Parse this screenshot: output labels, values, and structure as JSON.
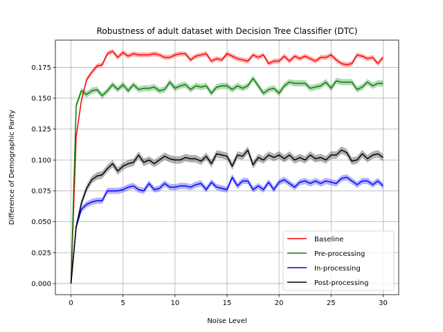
{
  "chart_data": {
    "type": "line",
    "title": "Robustness of adult dataset with Decision Tree Classifier (DTC)",
    "xlabel": "Noise Level",
    "ylabel": "Difference of Demographic Parity",
    "xlim": [
      -1.5,
      31.5
    ],
    "ylim": [
      -0.009,
      0.197
    ],
    "xticks": [
      0,
      5,
      10,
      15,
      20,
      25,
      30
    ],
    "yticks": [
      0.0,
      0.025,
      0.05,
      0.075,
      0.1,
      0.125,
      0.15,
      0.175
    ],
    "ytick_labels": [
      "0.000",
      "0.025",
      "0.050",
      "0.075",
      "0.100",
      "0.125",
      "0.150",
      "0.175"
    ],
    "grid": true,
    "legend_position": "lower-right",
    "x": [
      0,
      0.5,
      1,
      1.5,
      2,
      2.5,
      3,
      3.5,
      4,
      4.5,
      5,
      5.5,
      6,
      6.5,
      7,
      7.5,
      8,
      8.5,
      9,
      9.5,
      10,
      10.5,
      11,
      11.5,
      12,
      12.5,
      13,
      13.5,
      14,
      14.5,
      15,
      15.5,
      16,
      16.5,
      17,
      17.5,
      18,
      18.5,
      19,
      19.5,
      20,
      20.5,
      21,
      21.5,
      22,
      22.5,
      23,
      23.5,
      24,
      24.5,
      25,
      25.5,
      26,
      26.5,
      27,
      27.5,
      28,
      28.5,
      29,
      29.5,
      30
    ],
    "series": [
      {
        "name": "Baseline",
        "color": "#ff0000",
        "band": 0.002,
        "values": [
          0.0,
          0.119,
          0.148,
          0.165,
          0.171,
          0.176,
          0.177,
          0.186,
          0.188,
          0.183,
          0.187,
          0.184,
          0.186,
          0.185,
          0.185,
          0.185,
          0.186,
          0.185,
          0.183,
          0.183,
          0.185,
          0.186,
          0.186,
          0.181,
          0.184,
          0.185,
          0.186,
          0.18,
          0.182,
          0.181,
          0.186,
          0.184,
          0.182,
          0.181,
          0.18,
          0.185,
          0.183,
          0.185,
          0.178,
          0.18,
          0.18,
          0.184,
          0.18,
          0.184,
          0.182,
          0.184,
          0.182,
          0.18,
          0.183,
          0.183,
          0.185,
          0.181,
          0.178,
          0.177,
          0.178,
          0.185,
          0.184,
          0.182,
          0.183,
          0.178,
          0.183
        ]
      },
      {
        "name": "Pre-processing",
        "color": "#008000",
        "band": 0.0025,
        "values": [
          0.0,
          0.144,
          0.156,
          0.153,
          0.156,
          0.157,
          0.152,
          0.156,
          0.161,
          0.157,
          0.161,
          0.156,
          0.161,
          0.157,
          0.158,
          0.158,
          0.159,
          0.156,
          0.157,
          0.163,
          0.158,
          0.16,
          0.161,
          0.157,
          0.16,
          0.159,
          0.16,
          0.154,
          0.159,
          0.16,
          0.16,
          0.157,
          0.16,
          0.158,
          0.16,
          0.166,
          0.16,
          0.154,
          0.157,
          0.158,
          0.154,
          0.16,
          0.163,
          0.162,
          0.162,
          0.162,
          0.158,
          0.159,
          0.16,
          0.163,
          0.158,
          0.164,
          0.163,
          0.163,
          0.163,
          0.157,
          0.159,
          0.163,
          0.16,
          0.162,
          0.162
        ]
      },
      {
        "name": "In-processing",
        "color": "#0000ff",
        "band": 0.0025,
        "values": [
          0.0,
          0.046,
          0.06,
          0.064,
          0.066,
          0.067,
          0.067,
          0.075,
          0.075,
          0.075,
          0.076,
          0.078,
          0.079,
          0.076,
          0.075,
          0.081,
          0.076,
          0.077,
          0.081,
          0.078,
          0.078,
          0.079,
          0.079,
          0.078,
          0.08,
          0.081,
          0.076,
          0.082,
          0.078,
          0.077,
          0.076,
          0.086,
          0.079,
          0.083,
          0.083,
          0.076,
          0.079,
          0.076,
          0.082,
          0.076,
          0.082,
          0.084,
          0.081,
          0.078,
          0.082,
          0.083,
          0.081,
          0.083,
          0.081,
          0.083,
          0.082,
          0.081,
          0.085,
          0.086,
          0.083,
          0.08,
          0.083,
          0.083,
          0.08,
          0.083,
          0.079
        ]
      },
      {
        "name": "Post-processing",
        "color": "#000000",
        "band": 0.003,
        "values": [
          0.0,
          0.046,
          0.065,
          0.077,
          0.084,
          0.087,
          0.088,
          0.093,
          0.097,
          0.091,
          0.095,
          0.097,
          0.098,
          0.104,
          0.098,
          0.1,
          0.097,
          0.1,
          0.103,
          0.101,
          0.1,
          0.1,
          0.102,
          0.101,
          0.101,
          0.099,
          0.103,
          0.097,
          0.105,
          0.104,
          0.103,
          0.095,
          0.104,
          0.103,
          0.108,
          0.096,
          0.102,
          0.1,
          0.104,
          0.102,
          0.104,
          0.101,
          0.104,
          0.1,
          0.102,
          0.1,
          0.104,
          0.101,
          0.102,
          0.1,
          0.104,
          0.104,
          0.108,
          0.106,
          0.099,
          0.1,
          0.105,
          0.101,
          0.104,
          0.105,
          0.102
        ]
      }
    ]
  }
}
